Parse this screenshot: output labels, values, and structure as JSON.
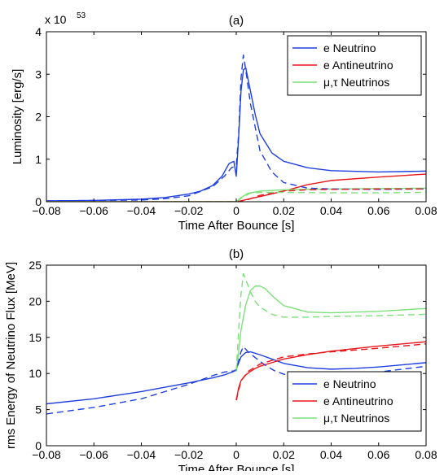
{
  "chart_data": [
    {
      "type": "line",
      "title": "(a)",
      "xlabel": "Time After Bounce [s]",
      "ylabel": "Luminosity [erg/s]",
      "scale_label": "x 10",
      "scale_exponent": "53",
      "xlim": [
        -0.08,
        0.08
      ],
      "ylim": [
        0,
        4
      ],
      "xticks": [
        -0.08,
        -0.06,
        -0.04,
        -0.02,
        0,
        0.02,
        0.04,
        0.06,
        0.08
      ],
      "xtick_labels": [
        "−0.08",
        "−0.06",
        "−0.04",
        "−0.02",
        "0",
        "0.02",
        "0.04",
        "0.06",
        "0.08"
      ],
      "yticks": [
        0,
        1,
        2,
        3,
        4
      ],
      "ytick_labels": [
        "0",
        "1",
        "2",
        "3",
        "4"
      ],
      "legend_position": "top-right",
      "series": [
        {
          "name": "e Neutrino",
          "color": "#1f3fe0",
          "style": "solid",
          "x": [
            -0.08,
            -0.06,
            -0.04,
            -0.03,
            -0.02,
            -0.015,
            -0.01,
            -0.006,
            -0.003,
            -0.001,
            0.0,
            0.001,
            0.002,
            0.003,
            0.004,
            0.006,
            0.008,
            0.01,
            0.015,
            0.02,
            0.03,
            0.04,
            0.06,
            0.08
          ],
          "y": [
            0.02,
            0.03,
            0.06,
            0.1,
            0.18,
            0.25,
            0.38,
            0.6,
            0.9,
            0.95,
            0.6,
            1.5,
            2.6,
            3.1,
            3.15,
            2.6,
            2.05,
            1.6,
            1.15,
            0.95,
            0.8,
            0.73,
            0.7,
            0.72
          ]
        },
        {
          "name": "e Antineutrino",
          "color": "#e8161b",
          "style": "solid",
          "x": [
            -0.08,
            0.0,
            0.002,
            0.005,
            0.01,
            0.02,
            0.03,
            0.04,
            0.06,
            0.08
          ],
          "y": [
            0.0,
            0.0,
            0.02,
            0.06,
            0.12,
            0.25,
            0.4,
            0.5,
            0.58,
            0.65
          ]
        },
        {
          "name": "μ,τ Neutrinos",
          "color": "#7ee07a",
          "style": "solid",
          "x": [
            -0.08,
            0.0,
            0.002,
            0.005,
            0.01,
            0.02,
            0.04,
            0.06,
            0.08
          ],
          "y": [
            0.0,
            0.0,
            0.1,
            0.2,
            0.25,
            0.28,
            0.3,
            0.31,
            0.32
          ]
        },
        {
          "name": "",
          "color": "#1f3fe0",
          "style": "dashed",
          "x": [
            -0.08,
            -0.06,
            -0.04,
            -0.03,
            -0.02,
            -0.01,
            -0.005,
            -0.002,
            0.0,
            0.001,
            0.002,
            0.003,
            0.004,
            0.006,
            0.01,
            0.015,
            0.02,
            0.03,
            0.04,
            0.06,
            0.08
          ],
          "y": [
            0.02,
            0.03,
            0.04,
            0.07,
            0.14,
            0.35,
            0.6,
            0.8,
            0.85,
            1.6,
            2.9,
            3.45,
            3.1,
            2.3,
            1.2,
            0.7,
            0.45,
            0.32,
            0.3,
            0.29,
            0.3
          ]
        },
        {
          "name": "",
          "color": "#e8161b",
          "style": "dashed",
          "x": [
            -0.08,
            0.0,
            0.005,
            0.01,
            0.02,
            0.03,
            0.04,
            0.06,
            0.08
          ],
          "y": [
            0.0,
            0.0,
            0.05,
            0.15,
            0.25,
            0.28,
            0.29,
            0.3,
            0.3
          ]
        },
        {
          "name": "",
          "color": "#7ee07a",
          "style": "dashed",
          "x": [
            -0.08,
            0.0,
            0.003,
            0.006,
            0.01,
            0.02,
            0.04,
            0.06,
            0.08
          ],
          "y": [
            0.0,
            0.0,
            0.12,
            0.2,
            0.22,
            0.22,
            0.21,
            0.21,
            0.22
          ]
        }
      ]
    },
    {
      "type": "line",
      "title": "(b)",
      "xlabel": "Time After Bounce [s]",
      "ylabel": "rms Energy of Neutrino Flux [MeV]",
      "xlim": [
        -0.08,
        0.08
      ],
      "ylim": [
        0,
        25
      ],
      "xticks": [
        -0.08,
        -0.06,
        -0.04,
        -0.02,
        0,
        0.02,
        0.04,
        0.06,
        0.08
      ],
      "xtick_labels": [
        "−0.08",
        "−0.06",
        "−0.04",
        "−0.02",
        "0",
        "0.02",
        "0.04",
        "0.06",
        "0.08"
      ],
      "yticks": [
        0,
        5,
        10,
        15,
        20,
        25
      ],
      "ytick_labels": [
        "0",
        "5",
        "10",
        "15",
        "20",
        "25"
      ],
      "legend_position": "bottom-right",
      "series": [
        {
          "name": "e Neutrino",
          "color": "#1f3fe0",
          "style": "solid",
          "x": [
            -0.08,
            -0.06,
            -0.04,
            -0.02,
            -0.01,
            -0.005,
            -0.001,
            0.0,
            0.002,
            0.004,
            0.006,
            0.01,
            0.015,
            0.02,
            0.03,
            0.04,
            0.05,
            0.06,
            0.08
          ],
          "y": [
            5.8,
            6.5,
            7.5,
            8.7,
            9.4,
            9.8,
            10.3,
            10.6,
            12.3,
            12.9,
            13.0,
            12.6,
            12.0,
            11.4,
            10.8,
            10.6,
            10.7,
            10.9,
            11.5
          ]
        },
        {
          "name": "e Antineutrino",
          "color": "#e8161b",
          "style": "solid",
          "x": [
            0.0,
            0.001,
            0.002,
            0.004,
            0.006,
            0.008,
            0.01,
            0.015,
            0.02,
            0.03,
            0.04,
            0.06,
            0.08
          ],
          "y": [
            6.3,
            8.0,
            9.0,
            9.8,
            10.3,
            10.7,
            11.0,
            11.5,
            12.0,
            12.6,
            13.1,
            13.8,
            14.4
          ]
        },
        {
          "name": "μ,τ Neutrinos",
          "color": "#7ee07a",
          "style": "solid",
          "x": [
            0.0,
            0.001,
            0.002,
            0.004,
            0.006,
            0.008,
            0.01,
            0.012,
            0.015,
            0.02,
            0.03,
            0.04,
            0.06,
            0.08
          ],
          "y": [
            10.3,
            13.0,
            16.0,
            19.5,
            21.5,
            22.1,
            22.1,
            21.8,
            20.8,
            19.4,
            18.5,
            18.4,
            18.6,
            19.0
          ]
        },
        {
          "name": "",
          "color": "#1f3fe0",
          "style": "dashed",
          "x": [
            -0.08,
            -0.06,
            -0.04,
            -0.02,
            -0.01,
            -0.005,
            0.0,
            0.002,
            0.003,
            0.005,
            0.008,
            0.012,
            0.016,
            0.02,
            0.03,
            0.04,
            0.06,
            0.08
          ],
          "y": [
            4.4,
            5.3,
            6.5,
            8.5,
            9.7,
            10.2,
            10.4,
            13.0,
            13.7,
            13.0,
            12.2,
            11.2,
            10.4,
            9.9,
            9.6,
            9.7,
            10.2,
            11.0
          ]
        },
        {
          "name": "",
          "color": "#e8161b",
          "style": "dashed",
          "x": [
            0.0,
            0.002,
            0.005,
            0.01,
            0.015,
            0.02,
            0.03,
            0.04,
            0.06,
            0.08
          ],
          "y": [
            6.3,
            9.0,
            10.3,
            11.3,
            11.8,
            12.3,
            12.7,
            13.0,
            13.5,
            14.1
          ]
        },
        {
          "name": "",
          "color": "#7ee07a",
          "style": "dashed",
          "x": [
            0.0,
            0.001,
            0.002,
            0.003,
            0.004,
            0.006,
            0.008,
            0.01,
            0.015,
            0.02,
            0.03,
            0.04,
            0.06,
            0.08
          ],
          "y": [
            10.3,
            16.0,
            21.0,
            23.8,
            23.0,
            21.3,
            20.0,
            19.2,
            18.2,
            17.8,
            17.8,
            17.9,
            18.0,
            18.2
          ]
        }
      ]
    }
  ]
}
